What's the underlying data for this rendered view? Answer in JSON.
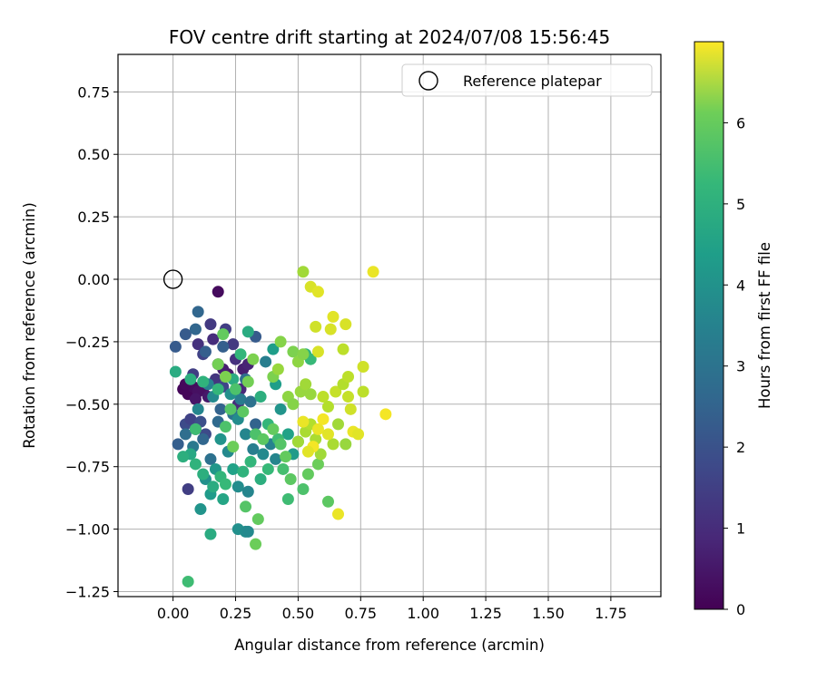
{
  "chart_data": {
    "type": "scatter",
    "title": "FOV centre drift starting at 2024/07/08 15:56:45",
    "xlabel": "Angular distance from reference (arcmin)",
    "ylabel": "Rotation from reference (arcmin)",
    "xlim": [
      -0.22,
      1.95
    ],
    "ylim": [
      -1.27,
      0.9
    ],
    "xticks": [
      0.0,
      0.25,
      0.5,
      0.75,
      1.0,
      1.25,
      1.5,
      1.75
    ],
    "xtick_labels": [
      "0.00",
      "0.25",
      "0.50",
      "0.75",
      "1.00",
      "1.25",
      "1.50",
      "1.75"
    ],
    "yticks": [
      0.75,
      0.5,
      0.25,
      0.0,
      -0.25,
      -0.5,
      -0.75,
      -1.0,
      -1.25
    ],
    "ytick_labels": [
      "0.75",
      "0.50",
      "0.25",
      "0.00",
      "−0.25",
      "−0.50",
      "−0.75",
      "−1.00",
      "−1.25"
    ],
    "grid": true,
    "legend": {
      "position": "top-right",
      "entries": [
        "Reference platepar"
      ],
      "marker": "hollow-circle"
    },
    "reference_point": {
      "x": 0.0,
      "y": 0.0
    },
    "colorbar": {
      "label": "Hours from first FF file",
      "colormap": "viridis",
      "range": [
        0,
        7
      ],
      "ticks": [
        0,
        1,
        2,
        3,
        4,
        5,
        6
      ],
      "tick_labels": [
        "0",
        "1",
        "2",
        "3",
        "4",
        "5",
        "6"
      ]
    },
    "points": [
      {
        "x": 0.04,
        "y": -0.44,
        "t": 0.1
      },
      {
        "x": 0.06,
        "y": -0.46,
        "t": 0.1
      },
      {
        "x": 0.08,
        "y": -0.43,
        "t": 0.2
      },
      {
        "x": 0.05,
        "y": -0.42,
        "t": 0.15
      },
      {
        "x": 0.1,
        "y": -0.45,
        "t": 0.3
      },
      {
        "x": 0.12,
        "y": -0.44,
        "t": 0.3
      },
      {
        "x": 0.09,
        "y": -0.48,
        "t": 0.4
      },
      {
        "x": 0.14,
        "y": -0.47,
        "t": 0.45
      },
      {
        "x": 0.18,
        "y": -0.05,
        "t": 0.2
      },
      {
        "x": 0.22,
        "y": -0.38,
        "t": 0.5
      },
      {
        "x": 0.2,
        "y": -0.36,
        "t": 0.6
      },
      {
        "x": 0.28,
        "y": -0.36,
        "t": 0.6
      },
      {
        "x": 0.3,
        "y": -0.34,
        "t": 0.7
      },
      {
        "x": 0.27,
        "y": -0.44,
        "t": 0.8
      },
      {
        "x": 0.26,
        "y": -0.5,
        "t": 0.9
      },
      {
        "x": 0.25,
        "y": -0.32,
        "t": 1.0
      },
      {
        "x": 0.16,
        "y": -0.24,
        "t": 0.9
      },
      {
        "x": 0.1,
        "y": -0.26,
        "t": 1.0
      },
      {
        "x": 0.18,
        "y": -0.34,
        "t": 1.0
      },
      {
        "x": 0.15,
        "y": -0.18,
        "t": 1.2
      },
      {
        "x": 0.21,
        "y": -0.2,
        "t": 1.3
      },
      {
        "x": 0.24,
        "y": -0.26,
        "t": 1.2
      },
      {
        "x": 0.08,
        "y": -0.38,
        "t": 1.3
      },
      {
        "x": 0.12,
        "y": -0.3,
        "t": 1.4
      },
      {
        "x": 0.17,
        "y": -0.4,
        "t": 1.1
      },
      {
        "x": 0.2,
        "y": -0.43,
        "t": 1.5
      },
      {
        "x": 0.05,
        "y": -0.58,
        "t": 1.6
      },
      {
        "x": 0.07,
        "y": -0.56,
        "t": 1.4
      },
      {
        "x": 0.09,
        "y": -0.6,
        "t": 1.5
      },
      {
        "x": 0.11,
        "y": -0.57,
        "t": 1.7
      },
      {
        "x": 0.13,
        "y": -0.62,
        "t": 1.6
      },
      {
        "x": 0.06,
        "y": -0.84,
        "t": 1.3
      },
      {
        "x": 0.1,
        "y": -0.13,
        "t": 2.3
      },
      {
        "x": 0.05,
        "y": -0.22,
        "t": 2.0
      },
      {
        "x": 0.01,
        "y": -0.27,
        "t": 2.0
      },
      {
        "x": 0.09,
        "y": -0.2,
        "t": 2.3
      },
      {
        "x": 0.13,
        "y": -0.29,
        "t": 2.1
      },
      {
        "x": 0.2,
        "y": -0.27,
        "t": 2.1
      },
      {
        "x": 0.33,
        "y": -0.23,
        "t": 2.0
      },
      {
        "x": 0.02,
        "y": -0.66,
        "t": 2.1
      },
      {
        "x": 0.05,
        "y": -0.62,
        "t": 2.5
      },
      {
        "x": 0.08,
        "y": -0.67,
        "t": 2.8
      },
      {
        "x": 0.12,
        "y": -0.64,
        "t": 2.3
      },
      {
        "x": 0.15,
        "y": -0.72,
        "t": 2.6
      },
      {
        "x": 0.18,
        "y": -0.57,
        "t": 2.4
      },
      {
        "x": 0.19,
        "y": -0.52,
        "t": 2.2
      },
      {
        "x": 0.24,
        "y": -0.54,
        "t": 2.7
      },
      {
        "x": 0.27,
        "y": -0.48,
        "t": 2.9
      },
      {
        "x": 0.29,
        "y": -0.4,
        "t": 2.5
      },
      {
        "x": 0.31,
        "y": -0.49,
        "t": 2.6
      },
      {
        "x": 0.33,
        "y": -0.58,
        "t": 2.2
      },
      {
        "x": 0.37,
        "y": -0.33,
        "t": 3.0
      },
      {
        "x": 0.14,
        "y": -0.42,
        "t": 3.1
      },
      {
        "x": 0.1,
        "y": -0.52,
        "t": 3.2
      },
      {
        "x": 0.16,
        "y": -0.47,
        "t": 3.3
      },
      {
        "x": 0.23,
        "y": -0.46,
        "t": 3.5
      },
      {
        "x": 0.26,
        "y": -0.56,
        "t": 3.4
      },
      {
        "x": 0.29,
        "y": -0.62,
        "t": 3.2
      },
      {
        "x": 0.32,
        "y": -0.68,
        "t": 3.0
      },
      {
        "x": 0.36,
        "y": -0.7,
        "t": 3.3
      },
      {
        "x": 0.39,
        "y": -0.66,
        "t": 3.1
      },
      {
        "x": 0.41,
        "y": -0.72,
        "t": 3.2
      },
      {
        "x": 0.26,
        "y": -0.83,
        "t": 3.4
      },
      {
        "x": 0.3,
        "y": -0.85,
        "t": 3.2
      },
      {
        "x": 0.19,
        "y": -0.64,
        "t": 3.6
      },
      {
        "x": 0.22,
        "y": -0.69,
        "t": 3.3
      },
      {
        "x": 0.17,
        "y": -0.76,
        "t": 3.7
      },
      {
        "x": 0.13,
        "y": -0.8,
        "t": 3.5
      },
      {
        "x": 0.11,
        "y": -0.92,
        "t": 3.6
      },
      {
        "x": 0.15,
        "y": -0.86,
        "t": 3.8
      },
      {
        "x": 0.26,
        "y": -1.0,
        "t": 3.5
      },
      {
        "x": 0.29,
        "y": -1.01,
        "t": 3.4
      },
      {
        "x": 0.3,
        "y": -1.01,
        "t": 3.3
      },
      {
        "x": 0.4,
        "y": -0.28,
        "t": 3.9
      },
      {
        "x": 0.41,
        "y": -0.42,
        "t": 3.9
      },
      {
        "x": 0.43,
        "y": -0.52,
        "t": 3.6
      },
      {
        "x": 0.46,
        "y": -0.62,
        "t": 4.0
      },
      {
        "x": 0.48,
        "y": -0.7,
        "t": 3.8
      },
      {
        "x": 0.24,
        "y": -0.76,
        "t": 4.0
      },
      {
        "x": 0.2,
        "y": -0.88,
        "t": 4.1
      },
      {
        "x": 0.15,
        "y": -1.02,
        "t": 4.3
      },
      {
        "x": 0.07,
        "y": -0.7,
        "t": 4.2
      },
      {
        "x": 0.04,
        "y": -0.71,
        "t": 4.4
      },
      {
        "x": 0.09,
        "y": -0.74,
        "t": 4.5
      },
      {
        "x": 0.12,
        "y": -0.78,
        "t": 4.4
      },
      {
        "x": 0.16,
        "y": -0.83,
        "t": 4.3
      },
      {
        "x": 0.19,
        "y": -0.79,
        "t": 4.6
      },
      {
        "x": 0.21,
        "y": -0.82,
        "t": 4.7
      },
      {
        "x": 0.28,
        "y": -0.77,
        "t": 4.5
      },
      {
        "x": 0.31,
        "y": -0.73,
        "t": 4.6
      },
      {
        "x": 0.35,
        "y": -0.8,
        "t": 4.4
      },
      {
        "x": 0.38,
        "y": -0.76,
        "t": 4.7
      },
      {
        "x": 0.01,
        "y": -0.37,
        "t": 4.3
      },
      {
        "x": 0.07,
        "y": -0.4,
        "t": 4.4
      },
      {
        "x": 0.12,
        "y": -0.41,
        "t": 4.5
      },
      {
        "x": 0.18,
        "y": -0.44,
        "t": 4.6
      },
      {
        "x": 0.24,
        "y": -0.4,
        "t": 4.3
      },
      {
        "x": 0.27,
        "y": -0.3,
        "t": 4.6
      },
      {
        "x": 0.3,
        "y": -0.21,
        "t": 4.3
      },
      {
        "x": 0.35,
        "y": -0.47,
        "t": 4.4
      },
      {
        "x": 0.38,
        "y": -0.58,
        "t": 4.6
      },
      {
        "x": 0.42,
        "y": -0.64,
        "t": 4.8
      },
      {
        "x": 0.44,
        "y": -0.76,
        "t": 4.9
      },
      {
        "x": 0.46,
        "y": -0.88,
        "t": 4.8
      },
      {
        "x": 0.5,
        "y": -0.65,
        "t": 4.9
      },
      {
        "x": 0.53,
        "y": -0.3,
        "t": 4.5
      },
      {
        "x": 0.55,
        "y": -0.32,
        "t": 4.7
      },
      {
        "x": 0.06,
        "y": -1.21,
        "t": 4.8
      },
      {
        "x": 0.09,
        "y": -0.6,
        "t": 4.8
      },
      {
        "x": 0.21,
        "y": -0.59,
        "t": 5.0
      },
      {
        "x": 0.23,
        "y": -0.52,
        "t": 5.1
      },
      {
        "x": 0.25,
        "y": -0.44,
        "t": 5.0
      },
      {
        "x": 0.28,
        "y": -0.53,
        "t": 5.2
      },
      {
        "x": 0.33,
        "y": -0.62,
        "t": 5.0
      },
      {
        "x": 0.36,
        "y": -0.64,
        "t": 5.2
      },
      {
        "x": 0.4,
        "y": -0.6,
        "t": 5.3
      },
      {
        "x": 0.43,
        "y": -0.66,
        "t": 5.1
      },
      {
        "x": 0.45,
        "y": -0.71,
        "t": 5.3
      },
      {
        "x": 0.47,
        "y": -0.8,
        "t": 5.2
      },
      {
        "x": 0.52,
        "y": -0.84,
        "t": 5.0
      },
      {
        "x": 0.54,
        "y": -0.78,
        "t": 5.3
      },
      {
        "x": 0.58,
        "y": -0.74,
        "t": 5.4
      },
      {
        "x": 0.62,
        "y": -0.89,
        "t": 5.2
      },
      {
        "x": 0.29,
        "y": -0.91,
        "t": 5.1
      },
      {
        "x": 0.34,
        "y": -0.96,
        "t": 5.3
      },
      {
        "x": 0.33,
        "y": -1.06,
        "t": 5.4
      },
      {
        "x": 0.24,
        "y": -0.67,
        "t": 5.4
      },
      {
        "x": 0.18,
        "y": -0.34,
        "t": 5.5
      },
      {
        "x": 0.2,
        "y": -0.22,
        "t": 5.3
      },
      {
        "x": 0.21,
        "y": -0.39,
        "t": 5.6
      },
      {
        "x": 0.3,
        "y": -0.41,
        "t": 5.5
      },
      {
        "x": 0.32,
        "y": -0.32,
        "t": 5.6
      },
      {
        "x": 0.4,
        "y": -0.39,
        "t": 5.6
      },
      {
        "x": 0.43,
        "y": -0.25,
        "t": 5.7
      },
      {
        "x": 0.48,
        "y": -0.29,
        "t": 5.6
      },
      {
        "x": 0.5,
        "y": -0.33,
        "t": 5.8
      },
      {
        "x": 0.52,
        "y": -0.3,
        "t": 5.7
      },
      {
        "x": 0.42,
        "y": -0.36,
        "t": 5.9
      },
      {
        "x": 0.46,
        "y": -0.47,
        "t": 5.8
      },
      {
        "x": 0.48,
        "y": -0.5,
        "t": 5.7
      },
      {
        "x": 0.51,
        "y": -0.45,
        "t": 5.9
      },
      {
        "x": 0.53,
        "y": -0.42,
        "t": 6.0
      },
      {
        "x": 0.55,
        "y": -0.46,
        "t": 5.9
      },
      {
        "x": 0.5,
        "y": -0.65,
        "t": 6.0
      },
      {
        "x": 0.53,
        "y": -0.61,
        "t": 6.1
      },
      {
        "x": 0.52,
        "y": 0.03,
        "t": 6.0
      },
      {
        "x": 0.55,
        "y": -0.58,
        "t": 6.2
      },
      {
        "x": 0.57,
        "y": -0.64,
        "t": 6.1
      },
      {
        "x": 0.59,
        "y": -0.7,
        "t": 6.0
      },
      {
        "x": 0.64,
        "y": -0.66,
        "t": 6.1
      },
      {
        "x": 0.66,
        "y": -0.58,
        "t": 6.0
      },
      {
        "x": 0.69,
        "y": -0.66,
        "t": 5.9
      },
      {
        "x": 0.6,
        "y": -0.47,
        "t": 6.3
      },
      {
        "x": 0.62,
        "y": -0.51,
        "t": 6.2
      },
      {
        "x": 0.65,
        "y": -0.45,
        "t": 6.4
      },
      {
        "x": 0.68,
        "y": -0.42,
        "t": 6.2
      },
      {
        "x": 0.7,
        "y": -0.39,
        "t": 6.3
      },
      {
        "x": 0.7,
        "y": -0.47,
        "t": 6.4
      },
      {
        "x": 0.76,
        "y": -0.45,
        "t": 6.3
      },
      {
        "x": 0.71,
        "y": -0.52,
        "t": 6.5
      },
      {
        "x": 0.68,
        "y": -0.28,
        "t": 6.3
      },
      {
        "x": 0.76,
        "y": -0.35,
        "t": 6.5
      },
      {
        "x": 0.58,
        "y": -0.29,
        "t": 6.6
      },
      {
        "x": 0.57,
        "y": -0.19,
        "t": 6.5
      },
      {
        "x": 0.63,
        "y": -0.2,
        "t": 6.6
      },
      {
        "x": 0.64,
        "y": -0.15,
        "t": 6.7
      },
      {
        "x": 0.69,
        "y": -0.18,
        "t": 6.6
      },
      {
        "x": 0.55,
        "y": -0.03,
        "t": 6.6
      },
      {
        "x": 0.58,
        "y": -0.05,
        "t": 6.7
      },
      {
        "x": 0.8,
        "y": 0.03,
        "t": 6.8
      },
      {
        "x": 0.85,
        "y": -0.54,
        "t": 6.9
      },
      {
        "x": 0.72,
        "y": -0.61,
        "t": 6.8
      },
      {
        "x": 0.74,
        "y": -0.62,
        "t": 6.7
      },
      {
        "x": 0.66,
        "y": -0.94,
        "t": 6.8
      },
      {
        "x": 0.58,
        "y": -0.6,
        "t": 6.8
      },
      {
        "x": 0.56,
        "y": -0.67,
        "t": 6.9
      },
      {
        "x": 0.54,
        "y": -0.69,
        "t": 6.7
      },
      {
        "x": 0.52,
        "y": -0.57,
        "t": 6.8
      },
      {
        "x": 0.6,
        "y": -0.56,
        "t": 6.9
      },
      {
        "x": 0.62,
        "y": -0.62,
        "t": 6.7
      }
    ]
  }
}
